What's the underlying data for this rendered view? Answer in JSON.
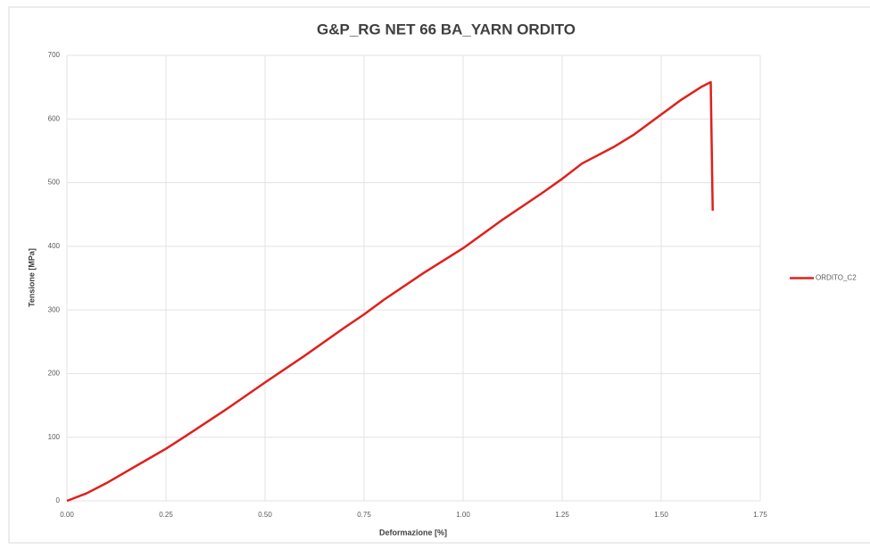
{
  "chart_data": {
    "type": "line",
    "title": "G&P_RG NET 66 BA_YARN ORDITO",
    "x_label": "Deformazione [%]",
    "y_label": "Tensione [MPa]",
    "x": [
      0,
      0.05,
      0.1,
      0.15,
      0.2,
      0.25,
      0.3,
      0.4,
      0.5,
      0.6,
      0.7,
      0.75,
      0.8,
      0.9,
      1.0,
      1.1,
      1.2,
      1.25,
      1.3,
      1.38,
      1.43,
      1.5,
      1.55,
      1.6,
      1.625,
      1.63
    ],
    "series": [
      {
        "name": "ORDITO_C2",
        "color": "#e0201b",
        "values": [
          0,
          12,
          28,
          46,
          64,
          82,
          102,
          143,
          186,
          228,
          272,
          293,
          316,
          358,
          397,
          442,
          484,
          506,
          530,
          556,
          575,
          607,
          630,
          650,
          658,
          456
        ]
      }
    ],
    "xlim": [
      0,
      1.75
    ],
    "xticks": [
      {
        "value": 0,
        "label": "0.00"
      },
      {
        "value": 0.25,
        "label": "0.25"
      },
      {
        "value": 0.5,
        "label": "0.50"
      },
      {
        "value": 0.75,
        "label": "0.75"
      },
      {
        "value": 1,
        "label": "1.00"
      },
      {
        "value": 1.25,
        "label": "1.25"
      },
      {
        "value": 1.5,
        "label": "1.50"
      },
      {
        "value": 1.75,
        "label": "1.75"
      }
    ],
    "ylim": [
      0,
      700
    ],
    "yticks": [
      0,
      100,
      200,
      300,
      400,
      500,
      600,
      700
    ],
    "grid": true,
    "legend": "right"
  }
}
